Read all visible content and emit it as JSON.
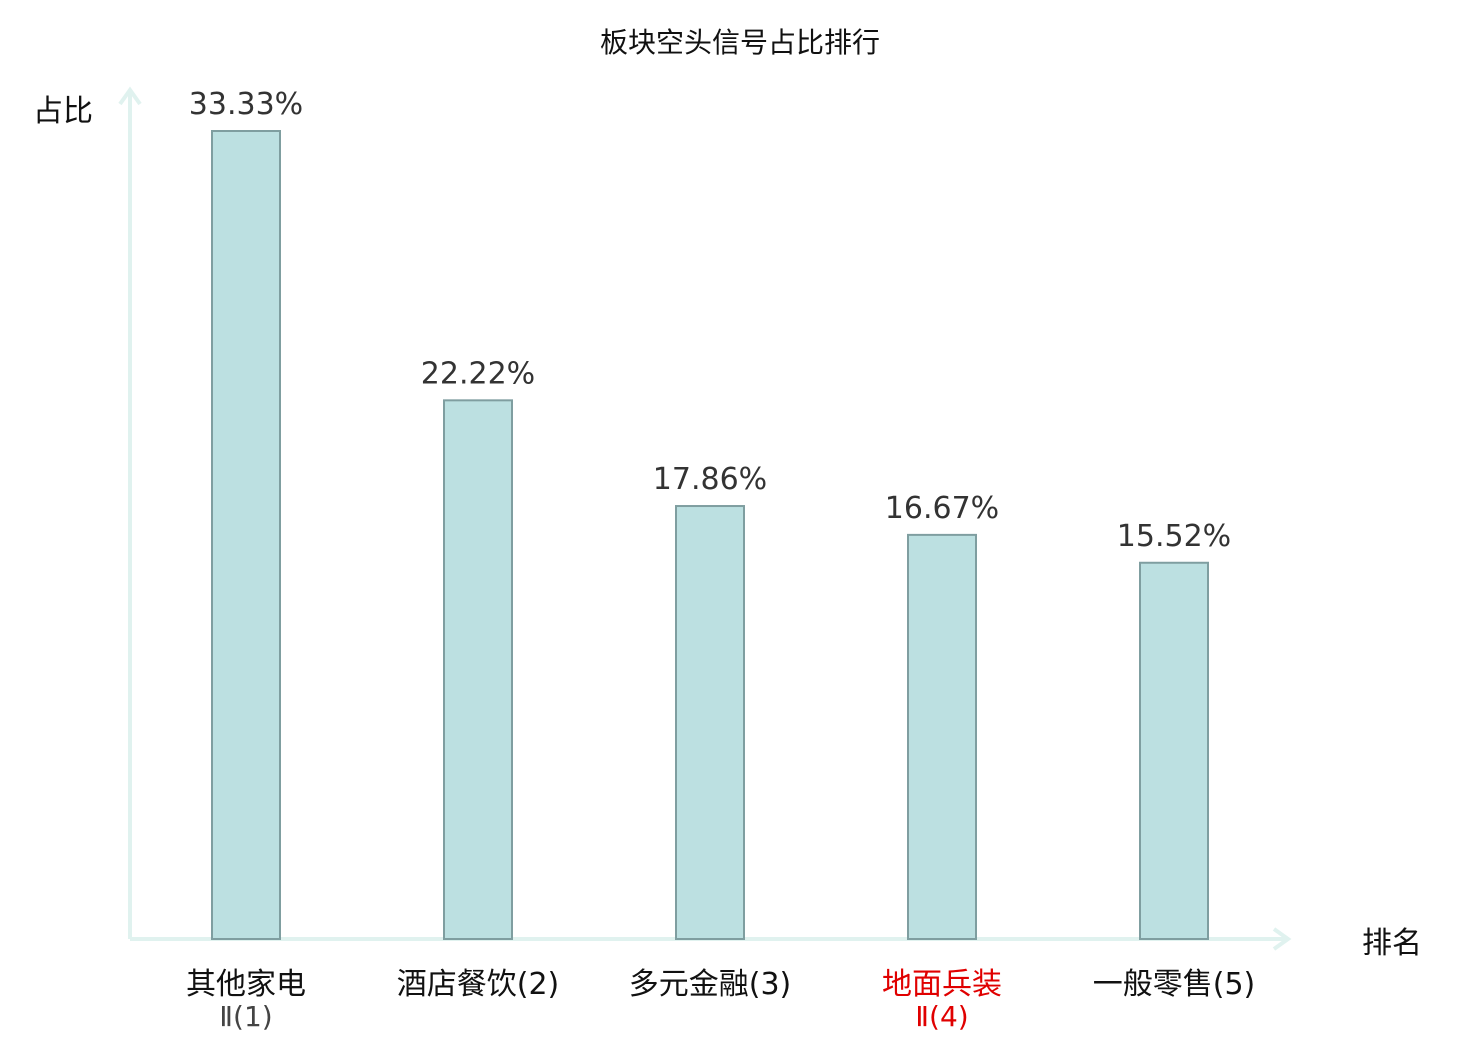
{
  "chart_data": {
    "type": "bar",
    "title": "板块空头信号占比排行",
    "ylabel": "占比",
    "xlabel": "排名",
    "categories": [
      {
        "name": "其他家电",
        "sub": "Ⅱ(1)",
        "highlight": false
      },
      {
        "name": "酒店餐饮(2)",
        "sub": "",
        "highlight": false
      },
      {
        "name": "多元金融(3)",
        "sub": "",
        "highlight": false
      },
      {
        "name": "地面兵装",
        "sub": "Ⅱ(4)",
        "highlight": true
      },
      {
        "name": "一般零售(5)",
        "sub": "",
        "highlight": false
      }
    ],
    "values": [
      33.33,
      22.22,
      17.86,
      16.67,
      15.52
    ],
    "value_labels": [
      "33.33%",
      "22.22%",
      "17.86%",
      "16.67%",
      "15.52%"
    ],
    "ylim": [
      0,
      33.33
    ],
    "grid": false,
    "colors": {
      "bar_fill": "#bce0e1",
      "bar_stroke": "#7f9ea0",
      "axis": "#e0f2ef",
      "text": "#111111",
      "value_text": "#333333",
      "highlight": "#e00000",
      "sub_text": "#444444"
    }
  }
}
